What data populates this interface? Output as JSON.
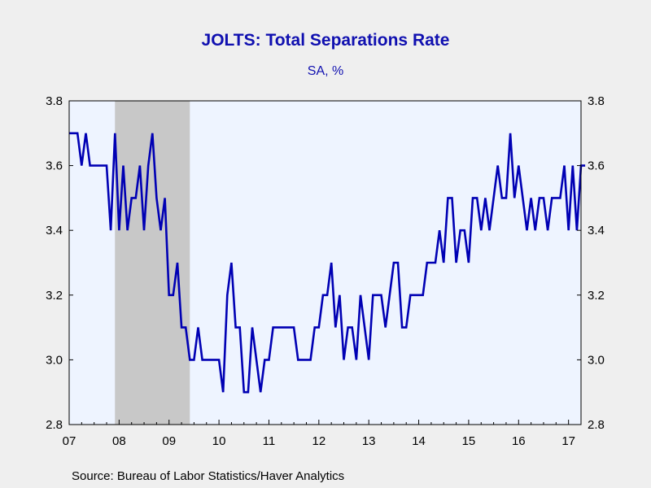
{
  "chart_data": {
    "type": "line",
    "title": "JOLTS: Total Separations Rate",
    "subtitle": "SA, %",
    "source": "Source:  Bureau of Labor Statistics/Haver Analytics",
    "ylim": [
      2.8,
      3.8
    ],
    "y_ticks": [
      "3.8",
      "3.6",
      "3.4",
      "3.2",
      "3.0",
      "2.8"
    ],
    "x_tick_labels": [
      "07",
      "08",
      "09",
      "10",
      "11",
      "12",
      "13",
      "14",
      "15",
      "16",
      "17"
    ],
    "x_range": [
      "2007-01",
      "2017-04"
    ],
    "recession_shading": {
      "start": "2007-12",
      "end": "2009-06",
      "color": "#c8c8c8"
    },
    "colors": {
      "line": "#0000b4",
      "plot_bg": "#eef4ff",
      "text": "#1010b0"
    },
    "grid": false,
    "legend": "none",
    "series": [
      {
        "start": "2007-01",
        "values": [
          3.7,
          3.7,
          3.7,
          3.6,
          3.7,
          3.6,
          3.6,
          3.6,
          3.6,
          3.6,
          3.4,
          3.7,
          3.4,
          3.6,
          3.4,
          3.5,
          3.5,
          3.6,
          3.4,
          3.6,
          3.7,
          3.5,
          3.4,
          3.5,
          3.2,
          3.2,
          3.3,
          3.1,
          3.1,
          3.0,
          3.0,
          3.1,
          3.0,
          3.0,
          3.0,
          3.0,
          3.0,
          2.9,
          3.2,
          3.3,
          3.1,
          3.1,
          2.9,
          2.9,
          3.1,
          3.0,
          2.9,
          3.0,
          3.0,
          3.1,
          3.1,
          3.1,
          3.1,
          3.1,
          3.1,
          3.0,
          3.0,
          3.0,
          3.0,
          3.1,
          3.1,
          3.2,
          3.2,
          3.3,
          3.1,
          3.2,
          3.0,
          3.1,
          3.1,
          3.0,
          3.2,
          3.1,
          3.0,
          3.2,
          3.2,
          3.2,
          3.1,
          3.2,
          3.3,
          3.3,
          3.1,
          3.1,
          3.2,
          3.2,
          3.2,
          3.2,
          3.3,
          3.3,
          3.3,
          3.4,
          3.3,
          3.5,
          3.5,
          3.3,
          3.4,
          3.4,
          3.3,
          3.5,
          3.5,
          3.4,
          3.5,
          3.4,
          3.5,
          3.6,
          3.5,
          3.5,
          3.7,
          3.5,
          3.6,
          3.5,
          3.4,
          3.5,
          3.4,
          3.5,
          3.5,
          3.4,
          3.5,
          3.5,
          3.5,
          3.6,
          3.4,
          3.6,
          3.4,
          3.6,
          3.6
        ]
      }
    ]
  }
}
